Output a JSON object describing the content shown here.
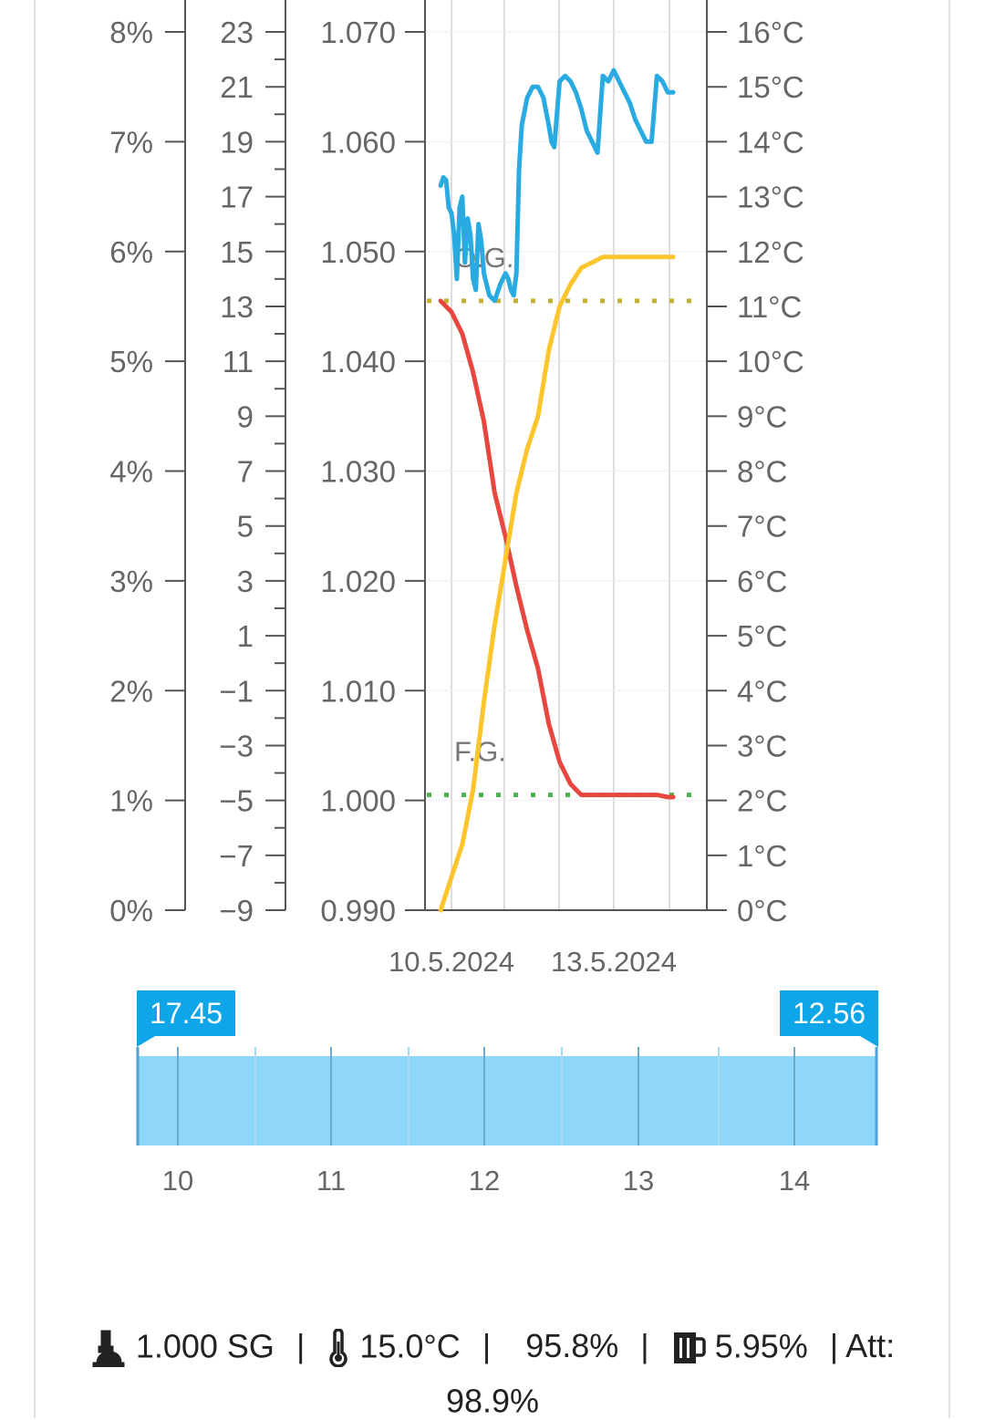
{
  "chart_data": {
    "type": "line",
    "x_ticks": [
      "10.5.2024",
      "13.5.2024"
    ],
    "axes": {
      "abv_ticks": [
        "8%",
        "7%",
        "6%",
        "5%",
        "4%",
        "3%",
        "2%",
        "1%",
        "0%"
      ],
      "plato_ticks": [
        "23",
        "21",
        "19",
        "17",
        "15",
        "13",
        "11",
        "9",
        "7",
        "5",
        "3",
        "1",
        "−1",
        "−3",
        "−5",
        "−7",
        "−9"
      ],
      "sg_ticks": [
        "1.070",
        "1.060",
        "1.050",
        "1.040",
        "1.030",
        "1.020",
        "1.010",
        "1.000",
        "0.990"
      ],
      "temp_ticks": [
        "16°C",
        "15°C",
        "14°C",
        "13°C",
        "12°C",
        "11°C",
        "10°C",
        "9°C",
        "8°C",
        "7°C",
        "6°C",
        "5°C",
        "4°C",
        "3°C",
        "2°C",
        "1°C",
        "0°C"
      ],
      "sg_range": [
        0.99,
        1.07
      ],
      "temp_range": [
        0,
        16
      ],
      "abv_range": [
        0,
        8
      ],
      "plato_range": [
        -9,
        23
      ]
    },
    "grid": true,
    "series": [
      {
        "name": "Temperature",
        "color": "#29abe2",
        "axis": "temp",
        "x": [
          9.8,
          9.85,
          9.9,
          9.95,
          10.0,
          10.05,
          10.1,
          10.15,
          10.2,
          10.25,
          10.3,
          10.35,
          10.4,
          10.45,
          10.5,
          10.55,
          10.6,
          10.7,
          10.8,
          10.9,
          11.0,
          11.05,
          11.1,
          11.15,
          11.2,
          11.25,
          11.3,
          11.4,
          11.5,
          11.6,
          11.7,
          11.8,
          11.85,
          11.9,
          12.0,
          12.1,
          12.2,
          12.3,
          12.4,
          12.5,
          12.6,
          12.7,
          12.8,
          12.9,
          13.0,
          13.1,
          13.2,
          13.3,
          13.4,
          13.5,
          13.6,
          13.7,
          13.8,
          13.9,
          14.0,
          14.1
        ],
        "values": [
          13.2,
          13.35,
          13.3,
          12.8,
          12.7,
          12.3,
          11.5,
          12.8,
          13.0,
          11.8,
          12.6,
          12.3,
          11.5,
          11.3,
          12.5,
          12.2,
          11.6,
          11.2,
          11.1,
          11.4,
          11.6,
          11.5,
          11.3,
          11.2,
          11.6,
          13.5,
          14.3,
          14.8,
          15.0,
          15.0,
          14.8,
          14.3,
          14.0,
          13.9,
          15.1,
          15.2,
          15.1,
          14.9,
          14.6,
          14.2,
          14.0,
          13.8,
          15.2,
          15.1,
          15.3,
          15.1,
          14.9,
          14.7,
          14.4,
          14.2,
          14.0,
          14.0,
          15.2,
          15.1,
          14.9,
          14.9
        ]
      },
      {
        "name": "Gravity",
        "color": "#e8473f",
        "axis": "sg",
        "x": [
          9.8,
          10.0,
          10.2,
          10.4,
          10.6,
          10.8,
          11.0,
          11.2,
          11.4,
          11.6,
          11.8,
          12.0,
          12.2,
          12.4,
          12.6,
          12.8,
          13.0,
          13.2,
          13.4,
          13.6,
          13.8,
          14.0,
          14.1
        ],
        "values": [
          1.0455,
          1.0445,
          1.0425,
          1.039,
          1.0345,
          1.028,
          1.024,
          1.0195,
          1.0155,
          1.012,
          1.007,
          1.0035,
          1.0015,
          1.0005,
          1.0005,
          1.0005,
          1.0005,
          1.0005,
          1.0005,
          1.0005,
          1.0005,
          1.0003,
          1.0003
        ]
      },
      {
        "name": "ABV",
        "color": "#fcc52c",
        "axis": "abv",
        "x": [
          9.8,
          10.0,
          10.2,
          10.4,
          10.6,
          10.8,
          11.0,
          11.2,
          11.4,
          11.6,
          11.8,
          12.0,
          12.2,
          12.4,
          12.6,
          12.8,
          13.0,
          13.2,
          13.4,
          13.6,
          13.8,
          14.0,
          14.1
        ],
        "values": [
          0.0,
          0.3,
          0.6,
          1.1,
          1.9,
          2.6,
          3.2,
          3.8,
          4.2,
          4.5,
          5.1,
          5.5,
          5.7,
          5.85,
          5.9,
          5.95,
          5.95,
          5.95,
          5.95,
          5.95,
          5.95,
          5.95,
          5.95
        ]
      }
    ],
    "reference_lines": [
      {
        "label": "O.G.",
        "value": 1.0455,
        "color": "#c8b030"
      },
      {
        "label": "F.G.",
        "value": 1.0005,
        "color": "#4caf50"
      }
    ]
  },
  "navigator": {
    "left_handle": "17.45",
    "right_handle": "12.56",
    "ticks": [
      "10",
      "11",
      "12",
      "13",
      "14"
    ],
    "fill_color": "#8fd7f8",
    "handle_color": "#0ea5e9"
  },
  "status": {
    "gravity": "1.000 SG",
    "temperature": "15.0°C",
    "battery": "95.8%",
    "abv": "5.95%",
    "attenuation_label": "| Att:",
    "attenuation_value": "98.9%",
    "separator": "|"
  }
}
